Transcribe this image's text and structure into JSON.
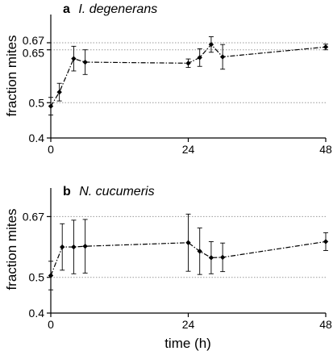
{
  "chart_data": [
    {
      "type": "line",
      "panel_letter": "a",
      "title": "I. degenerans",
      "xlabel": "",
      "ylabel": "fraction mites",
      "xlim": [
        0,
        48
      ],
      "ylim": [
        0.4,
        0.75
      ],
      "x_ticks": [
        0,
        24,
        48
      ],
      "x_tick_labels": [
        "0",
        "24",
        "48"
      ],
      "y_ticks": [
        0.4,
        0.5,
        0.65,
        0.67
      ],
      "y_tick_labels": [
        "0.4",
        "0.5",
        "0.65",
        "0.67"
      ],
      "reference_lines": [
        0.5,
        0.65,
        0.67
      ],
      "series": [
        {
          "x": [
            0,
            1.5,
            4,
            6,
            24,
            26,
            28,
            30,
            48
          ],
          "y": [
            0.49,
            0.53,
            0.625,
            0.615,
            0.612,
            0.628,
            0.665,
            0.63,
            0.658
          ],
          "yerr": [
            0.025,
            0.025,
            0.035,
            0.035,
            0.012,
            0.025,
            0.022,
            0.035,
            0.008
          ]
        }
      ]
    },
    {
      "type": "line",
      "panel_letter": "b",
      "title": "N. cucumeris",
      "xlabel": "time (h)",
      "ylabel": "fraction mites",
      "xlim": [
        0,
        48
      ],
      "ylim": [
        0.4,
        0.75
      ],
      "x_ticks": [
        0,
        24,
        48
      ],
      "x_tick_labels": [
        "0",
        "24",
        "48"
      ],
      "y_ticks": [
        0.4,
        0.5,
        0.67
      ],
      "y_tick_labels": [
        "0.4",
        "0.5",
        "0.67"
      ],
      "reference_lines": [
        0.5,
        0.67
      ],
      "series": [
        {
          "x": [
            0,
            2,
            4,
            6,
            24,
            26,
            28,
            30,
            48
          ],
          "y": [
            0.505,
            0.585,
            0.585,
            0.587,
            0.597,
            0.573,
            0.555,
            0.556,
            0.6
          ],
          "yerr": [
            0.04,
            0.065,
            0.075,
            0.075,
            0.08,
            0.065,
            0.045,
            0.04,
            0.025
          ]
        }
      ]
    }
  ]
}
